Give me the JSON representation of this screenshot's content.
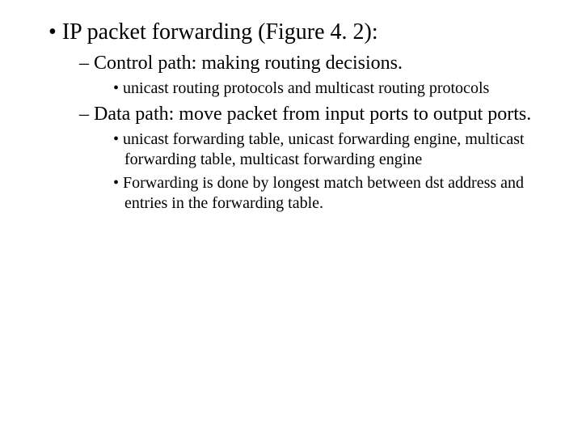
{
  "background_color": "#ffffff",
  "text_color": "#000000",
  "font_family": "Times New Roman, serif",
  "fontsize_lvl1": 28,
  "fontsize_lvl2": 24,
  "fontsize_lvl3": 20,
  "bullets": {
    "lvl1_marker": "• ",
    "lvl2_marker": "– ",
    "lvl3_marker": "• ",
    "l1_a": "IP packet forwarding (Figure 4. 2):",
    "l2_a": "Control path: making routing decisions.",
    "l3_a": "unicast routing protocols and multicast routing protocols",
    "l2_b": "Data path: move packet from input ports to output ports.",
    "l3_b": "unicast forwarding table, unicast forwarding engine, multicast forwarding table, multicast forwarding engine",
    "l3_c": "Forwarding is done by longest match between dst address and entries in the forwarding table."
  }
}
